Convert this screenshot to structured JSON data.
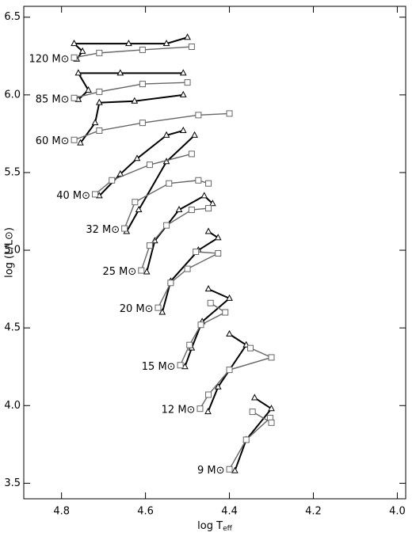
{
  "chart_data": {
    "type": "line",
    "x_label": "log T",
    "x_label_sub": "eff",
    "y_label": "log (L/L⊙)",
    "xlim": [
      4.89,
      3.98
    ],
    "ylim": [
      3.4,
      6.57
    ],
    "xticks": [
      4.8,
      4.6,
      4.4,
      4.2,
      {
        "value": 4,
        "label": "4.0"
      }
    ],
    "yticks": [
      3.5,
      {
        "value": 4,
        "label": "4.0"
      },
      4.5,
      {
        "value": 5,
        "label": "5.0"
      },
      5.5,
      {
        "value": 6,
        "label": "6.0"
      },
      6.5
    ],
    "series": [
      {
        "name": "9 M⊙",
        "lines": [
          {
            "marker": "triangle",
            "color": "#000000",
            "x": [
              4.387,
              4.36,
              4.3,
              4.34
            ],
            "y": [
              3.58,
              3.78,
              3.98,
              4.05
            ]
          },
          {
            "marker": "square",
            "color": "#666666",
            "x": [
              4.4,
              4.36,
              4.303,
              4.3,
              4.345
            ],
            "y": [
              3.59,
              3.78,
              3.92,
              3.89,
              3.96
            ]
          }
        ]
      },
      {
        "name": "12 M⊙",
        "lines": [
          {
            "marker": "triangle",
            "color": "#000000",
            "x": [
              4.451,
              4.427,
              4.36,
              4.4
            ],
            "y": [
              3.96,
              4.12,
              4.39,
              4.46
            ]
          },
          {
            "marker": "square",
            "color": "#666666",
            "x": [
              4.47,
              4.45,
              4.4,
              4.3,
              4.35
            ],
            "y": [
              3.98,
              4.07,
              4.23,
              4.31,
              4.37
            ]
          }
        ]
      },
      {
        "name": "15 M⊙",
        "lines": [
          {
            "marker": "triangle",
            "color": "#000000",
            "x": [
              4.506,
              4.49,
              4.465,
              4.4,
              4.45
            ],
            "y": [
              4.25,
              4.37,
              4.54,
              4.69,
              4.75
            ]
          },
          {
            "marker": "square",
            "color": "#666666",
            "x": [
              4.517,
              4.495,
              4.468,
              4.41,
              4.445
            ],
            "y": [
              4.26,
              4.39,
              4.52,
              4.6,
              4.66
            ]
          }
        ]
      },
      {
        "name": "20 M⊙",
        "lines": [
          {
            "marker": "triangle",
            "color": "#000000",
            "x": [
              4.56,
              4.54,
              4.474,
              4.427,
              4.45
            ],
            "y": [
              4.6,
              4.8,
              5.0,
              5.08,
              5.12
            ]
          },
          {
            "marker": "square",
            "color": "#666666",
            "x": [
              4.57,
              4.54,
              4.5,
              4.427,
              4.48
            ],
            "y": [
              4.63,
              4.79,
              4.88,
              4.98,
              4.99
            ]
          }
        ]
      },
      {
        "name": "25 M⊙",
        "lines": [
          {
            "marker": "triangle",
            "color": "#000000",
            "x": [
              4.597,
              4.578,
              4.52,
              4.46,
              4.44
            ],
            "y": [
              4.86,
              5.06,
              5.26,
              5.35,
              5.3
            ]
          },
          {
            "marker": "square",
            "color": "#666666",
            "x": [
              4.61,
              4.59,
              4.55,
              4.49,
              4.45
            ],
            "y": [
              4.87,
              5.03,
              5.16,
              5.26,
              5.27
            ]
          }
        ]
      },
      {
        "name": "32 M⊙",
        "lines": [
          {
            "marker": "triangle",
            "color": "#000000",
            "x": [
              4.645,
              4.616,
              4.55,
              4.483
            ],
            "y": [
              5.12,
              5.26,
              5.57,
              5.74
            ]
          },
          {
            "marker": "square",
            "color": "#666666",
            "x": [
              4.65,
              4.625,
              4.544,
              4.474,
              4.45
            ],
            "y": [
              5.14,
              5.31,
              5.43,
              5.45,
              5.43
            ]
          }
        ]
      },
      {
        "name": "40 M⊙",
        "lines": [
          {
            "marker": "triangle",
            "color": "#000000",
            "x": [
              4.71,
              4.66,
              4.62,
              4.55,
              4.51
            ],
            "y": [
              5.35,
              5.49,
              5.59,
              5.74,
              5.77
            ]
          },
          {
            "marker": "square",
            "color": "#666666",
            "x": [
              4.72,
              4.68,
              4.59,
              4.49
            ],
            "y": [
              5.36,
              5.45,
              5.55,
              5.62
            ]
          }
        ]
      },
      {
        "name": "60 M⊙",
        "lines": [
          {
            "marker": "triangle",
            "color": "#000000",
            "x": [
              4.755,
              4.72,
              4.71,
              4.626,
              4.51
            ],
            "y": [
              5.69,
              5.82,
              5.95,
              5.96,
              6.0
            ]
          },
          {
            "marker": "square",
            "color": "#666666",
            "x": [
              4.77,
              4.71,
              4.607,
              4.474,
              4.4
            ],
            "y": [
              5.71,
              5.77,
              5.82,
              5.87,
              5.88
            ]
          }
        ]
      },
      {
        "name": "85 M⊙",
        "lines": [
          {
            "marker": "triangle",
            "color": "#000000",
            "x": [
              4.76,
              4.736,
              4.76,
              4.66,
              4.51
            ],
            "y": [
              5.97,
              6.03,
              6.14,
              6.14,
              6.14
            ]
          },
          {
            "marker": "square",
            "color": "#666666",
            "x": [
              4.77,
              4.71,
              4.607,
              4.5
            ],
            "y": [
              5.98,
              6.02,
              6.07,
              6.08
            ]
          }
        ]
      },
      {
        "name": "120 M⊙",
        "lines": [
          {
            "marker": "triangle",
            "color": "#000000",
            "x": [
              4.764,
              4.75,
              4.77,
              4.64,
              4.55,
              4.5
            ],
            "y": [
              6.23,
              6.28,
              6.33,
              6.33,
              6.33,
              6.37
            ]
          },
          {
            "marker": "square",
            "color": "#666666",
            "x": [
              4.77,
              4.71,
              4.607,
              4.49
            ],
            "y": [
              6.24,
              6.27,
              6.29,
              6.31
            ]
          }
        ]
      }
    ]
  }
}
